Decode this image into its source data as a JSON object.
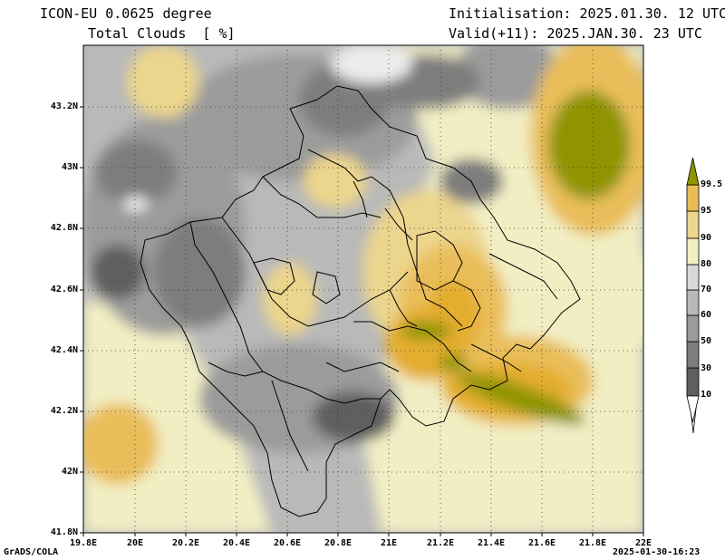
{
  "header": {
    "model": "ICON-EU 0.0625 degree",
    "field": "Total Clouds  [ %]",
    "init": "Initialisation: 2025.01.30. 12 UTC",
    "valid": "Valid(+11): 2025.JAN.30. 23 UTC"
  },
  "axes": {
    "x_ticks": [
      "19.8E",
      "20E",
      "20.2E",
      "20.4E",
      "20.6E",
      "20.8E",
      "21E",
      "21.2E",
      "21.4E",
      "21.6E",
      "21.8E",
      "22E"
    ],
    "y_ticks": [
      "41.8N",
      "42N",
      "42.2N",
      "42.4N",
      "42.6N",
      "42.8N",
      "43N",
      "43.2N"
    ]
  },
  "legend": {
    "levels": [
      "10",
      "30",
      "50",
      "60",
      "70",
      "80",
      "90",
      "95",
      "99.5"
    ],
    "colors": [
      "#5f5f5f",
      "#7d7d7d",
      "#9b9b9b",
      "#b9b9b9",
      "#d9d9d9",
      "#f2eec4",
      "#ecd58c",
      "#e9be5a",
      "#e4ad2e",
      "#8f9400"
    ]
  },
  "footer": {
    "left": "GrADS/COLA",
    "right": "2025-01-30-16:23"
  }
}
